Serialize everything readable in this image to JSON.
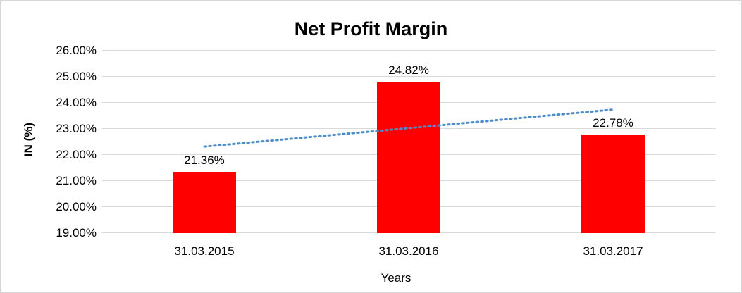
{
  "chart_data": {
    "type": "bar",
    "title": "Net Profit Margin",
    "xlabel": "Years",
    "ylabel": "IN (%)",
    "categories": [
      "31.03.2015",
      "31.03.2016",
      "31.03.2017"
    ],
    "values": [
      21.36,
      24.82,
      22.78
    ],
    "data_labels": [
      "21.36%",
      "24.82%",
      "22.78%"
    ],
    "ylim": [
      19,
      26
    ],
    "ytick_labels": [
      "26.00%",
      "25.00%",
      "24.00%",
      "23.00%",
      "22.00%",
      "21.00%",
      "20.00%",
      "19.00%"
    ],
    "grid": true,
    "legend": "none",
    "bar_color": "#FF0000",
    "grid_color": "#D9D9D9",
    "trendline": {
      "type": "linear",
      "style": "dotted",
      "color": "#4E8BC8",
      "start_value": 22.32,
      "end_value": 23.74
    }
  }
}
